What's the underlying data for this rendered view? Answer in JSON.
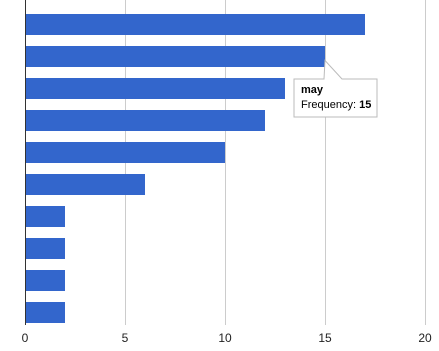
{
  "chart_data": {
    "type": "bar",
    "orientation": "horizontal",
    "values": [
      17,
      15,
      13,
      12,
      10,
      6,
      2,
      2,
      2,
      2
    ],
    "xlim": [
      0,
      20
    ],
    "x_ticks": [
      0,
      5,
      10,
      15,
      20
    ],
    "grid": true,
    "bar_color": "#3366cc",
    "tooltip": {
      "category": "may",
      "label": "Frequency",
      "value": "15"
    }
  }
}
